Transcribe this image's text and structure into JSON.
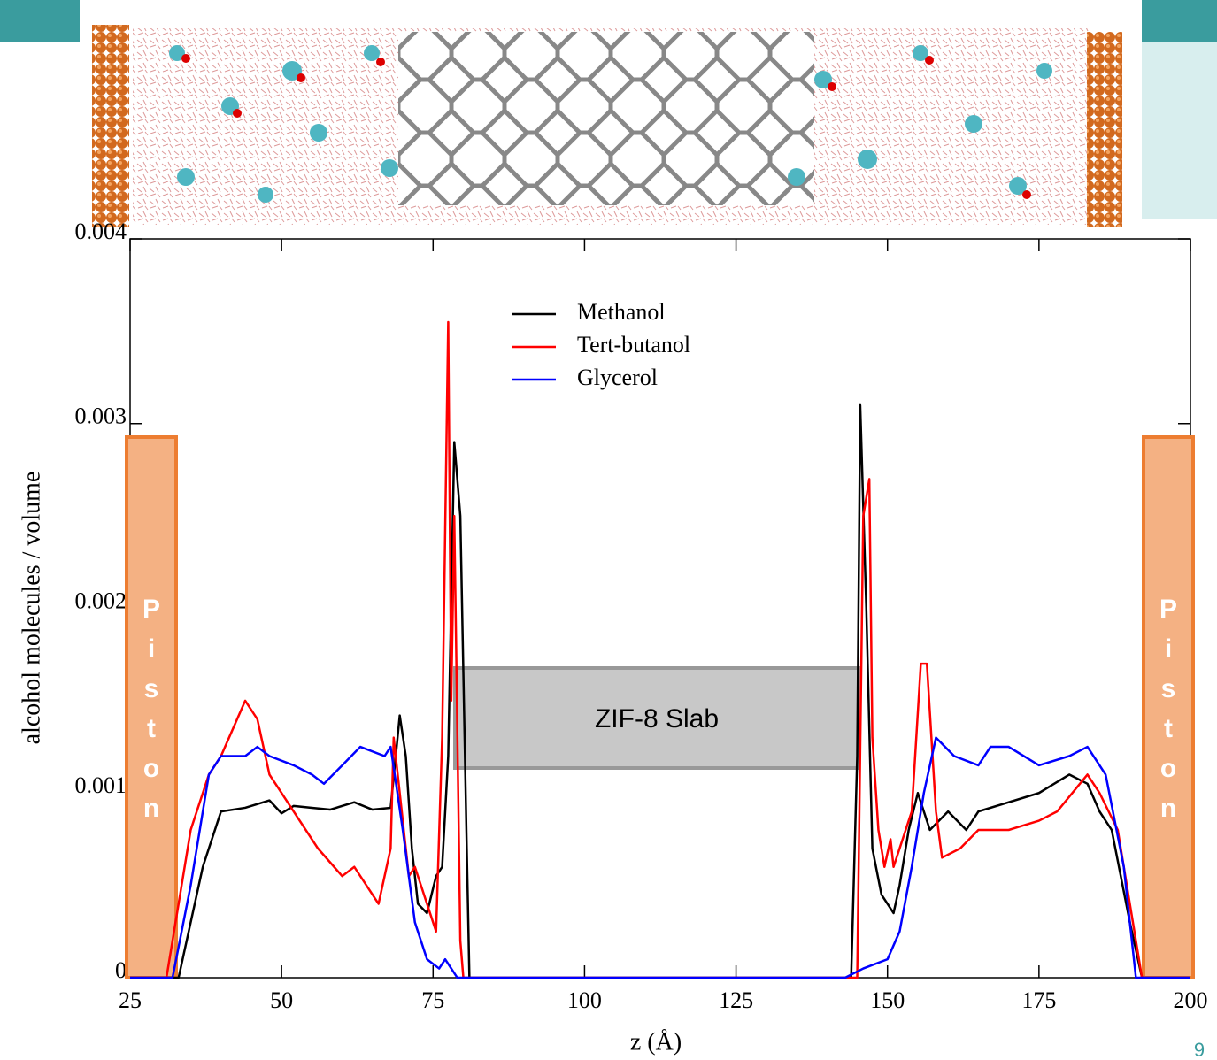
{
  "chart_data": {
    "type": "line",
    "xlabel": "z (Å)",
    "ylabel": "alcohol molecules / volume",
    "xlim": [
      25,
      200
    ],
    "ylim": [
      0,
      0.004
    ],
    "xticks": [
      25,
      50,
      75,
      100,
      125,
      150,
      175,
      200
    ],
    "yticks": [
      0,
      0.001,
      0.002,
      0.003,
      0.004
    ],
    "series": [
      {
        "name": "Methanol",
        "color": "#000000",
        "x": [
          25,
          32,
          33,
          35,
          37,
          40,
          44,
          48,
          50,
          52,
          55,
          58,
          62,
          65,
          68,
          69.5,
          70.5,
          71.5,
          72.5,
          74,
          75.5,
          76.5,
          77.5,
          78.5,
          79.5,
          80.5,
          81,
          100,
          144,
          145,
          145.5,
          146.5,
          147.5,
          149,
          151,
          152,
          153.5,
          155,
          157,
          160,
          163,
          165,
          170,
          175,
          180,
          183,
          185,
          187,
          190,
          192,
          200
        ],
        "values": [
          0,
          0,
          0,
          0.0003,
          0.0006,
          0.0009,
          0.00092,
          0.00096,
          0.00089,
          0.00093,
          0.00092,
          0.00091,
          0.00095,
          0.00091,
          0.00092,
          0.00142,
          0.0012,
          0.0007,
          0.0004,
          0.00035,
          0.00055,
          0.0006,
          0.0012,
          0.0029,
          0.0025,
          0.0008,
          0,
          0,
          0,
          0.0012,
          0.0031,
          0.002,
          0.0007,
          0.00045,
          0.00035,
          0.0005,
          0.0008,
          0.001,
          0.0008,
          0.0009,
          0.0008,
          0.0009,
          0.00095,
          0.001,
          0.0011,
          0.00105,
          0.0009,
          0.0008,
          0.0003,
          0,
          0
        ]
      },
      {
        "name": "Tert-butanol",
        "color": "#ff0000",
        "x": [
          25,
          30,
          31,
          33,
          35,
          38,
          40,
          44,
          46,
          48,
          52,
          56,
          60,
          62,
          66,
          68,
          68.5,
          69.5,
          71,
          72,
          74,
          75.5,
          76.5,
          77.5,
          78,
          78.5,
          79.5,
          80,
          100,
          145,
          146,
          147,
          147.5,
          148.5,
          149.5,
          150.5,
          151,
          152,
          154,
          155.5,
          156.5,
          158,
          159,
          162,
          165,
          170,
          175,
          178,
          183,
          185,
          188,
          190,
          192,
          200
        ],
        "values": [
          0,
          0,
          0,
          0.0004,
          0.0008,
          0.0011,
          0.0012,
          0.0015,
          0.0014,
          0.0011,
          0.0009,
          0.0007,
          0.00055,
          0.0006,
          0.0004,
          0.0007,
          0.0013,
          0.001,
          0.00055,
          0.0006,
          0.0004,
          0.00025,
          0.0013,
          0.00355,
          0.0015,
          0.0025,
          0.0002,
          0,
          0,
          0,
          0.0025,
          0.0027,
          0.0013,
          0.0008,
          0.0006,
          0.00075,
          0.0006,
          0.0007,
          0.0009,
          0.0017,
          0.0017,
          0.0009,
          0.00065,
          0.0007,
          0.0008,
          0.0008,
          0.00085,
          0.0009,
          0.0011,
          0.001,
          0.0008,
          0.0004,
          0,
          0
        ]
      },
      {
        "name": "Glycerol",
        "color": "#0000ff",
        "x": [
          25,
          32,
          35,
          38,
          40,
          44,
          46,
          48,
          52,
          55,
          57,
          60,
          63,
          67,
          68,
          70,
          72,
          74,
          76,
          77,
          79,
          100,
          143,
          146,
          150,
          152,
          154,
          156,
          158,
          161,
          165,
          167,
          170,
          175,
          180,
          183,
          186,
          189,
          191,
          200
        ],
        "values": [
          0,
          0,
          0.0005,
          0.0011,
          0.0012,
          0.0012,
          0.00125,
          0.0012,
          0.00115,
          0.0011,
          0.00105,
          0.00115,
          0.00125,
          0.0012,
          0.00125,
          0.0008,
          0.0003,
          0.0001,
          5e-05,
          0.0001,
          0,
          0,
          0,
          5e-05,
          0.0001,
          0.00025,
          0.0006,
          0.001,
          0.0013,
          0.0012,
          0.00115,
          0.00125,
          0.00125,
          0.00115,
          0.0012,
          0.00125,
          0.0011,
          0.0006,
          0,
          0
        ]
      }
    ],
    "annotations": {
      "left_piston": [
        "P",
        "i",
        "s",
        "t",
        "o",
        "n"
      ],
      "right_piston": [
        "P",
        "i",
        "s",
        "t",
        "o",
        "n"
      ],
      "slab": "ZIF-8 Slab"
    },
    "page_number": "9"
  }
}
